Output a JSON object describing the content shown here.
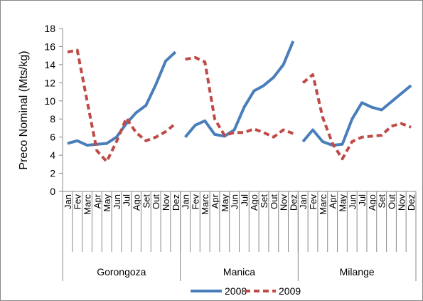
{
  "chart_data": {
    "type": "line",
    "y_label": "Preco Nominal (Mts/kg)",
    "categories": [
      "Jan",
      "Fev",
      "Marc",
      "Apr",
      "May",
      "Jun",
      "Jul",
      "Ago",
      "Set",
      "Out",
      "Nov",
      "Dez",
      "Jan",
      "Fev",
      "Marc",
      "Apr",
      "May",
      "Jun",
      "Jul",
      "Ago",
      "Set",
      "Out",
      "Nov",
      "Dez",
      "Jan",
      "Fev",
      "Marc",
      "Apr",
      "May",
      "Jun",
      "Jul",
      "Ago",
      "Set",
      "Out",
      "Nov",
      "Dez"
    ],
    "groups": [
      "Gorongoza",
      "Manica",
      "Milange"
    ],
    "series": [
      {
        "name": "2008",
        "color": "#4a7ebb",
        "dash": false,
        "values": [
          5.3,
          5.6,
          5.1,
          5.2,
          5.3,
          6.0,
          7.5,
          8.7,
          9.5,
          11.8,
          14.4,
          15.4,
          6.0,
          7.3,
          7.8,
          6.3,
          6.1,
          6.8,
          9.3,
          11.1,
          11.7,
          12.6,
          14.0,
          16.6,
          5.5,
          6.8,
          5.5,
          5.1,
          5.2,
          8.0,
          9.8,
          9.3,
          9.0,
          9.9,
          10.8,
          11.7
        ]
      },
      {
        "name": "2009",
        "color": "#be4b48",
        "dash": true,
        "values": [
          15.4,
          15.6,
          10.0,
          4.5,
          3.3,
          5.5,
          8.1,
          6.5,
          5.6,
          6.0,
          6.6,
          7.5,
          14.6,
          14.8,
          14.3,
          8.0,
          6.2,
          6.5,
          6.5,
          6.9,
          6.5,
          6.0,
          6.8,
          6.4,
          12.0,
          12.9,
          8.2,
          5.3,
          3.6,
          5.5,
          6.0,
          6.1,
          6.2,
          7.2,
          7.5,
          7.1
        ]
      }
    ],
    "ylim": [
      0,
      18
    ],
    "yticks": [
      0,
      2,
      4,
      6,
      8,
      10,
      12,
      14,
      16,
      18
    ]
  }
}
